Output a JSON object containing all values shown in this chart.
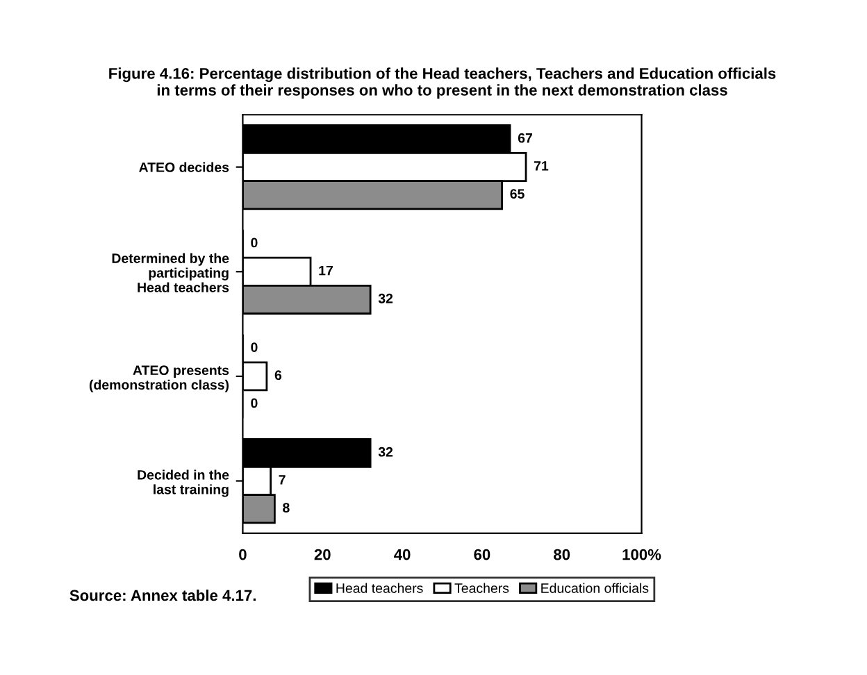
{
  "chart_data": {
    "type": "bar",
    "orientation": "horizontal",
    "title": "Figure 4.16: Percentage distribution of the Head teachers, Teachers and Education officials\nin terms of their responses on who to present in the next demonstration class",
    "categories": [
      "ATEO decides",
      "Determined by the\nparticipating\nHead teachers",
      "ATEO presents\n(demonstration class)",
      "Decided in the\nlast training"
    ],
    "series": [
      {
        "name": "Head teachers",
        "color": "#000000",
        "values": [
          67,
          0,
          0,
          32
        ]
      },
      {
        "name": "Teachers",
        "color": "#ffffff",
        "values": [
          71,
          17,
          6,
          7
        ]
      },
      {
        "name": "Education officials",
        "color": "#8c8c8c",
        "values": [
          65,
          32,
          0,
          8
        ]
      }
    ],
    "xlim": [
      0,
      100
    ],
    "xticks": [
      0,
      20,
      40,
      60,
      80,
      {
        "value": 100,
        "label": "100%"
      }
    ],
    "data_labels": true,
    "grid": false,
    "legend": "bottom",
    "annotations": [
      "Source: Annex table 4.17."
    ]
  }
}
